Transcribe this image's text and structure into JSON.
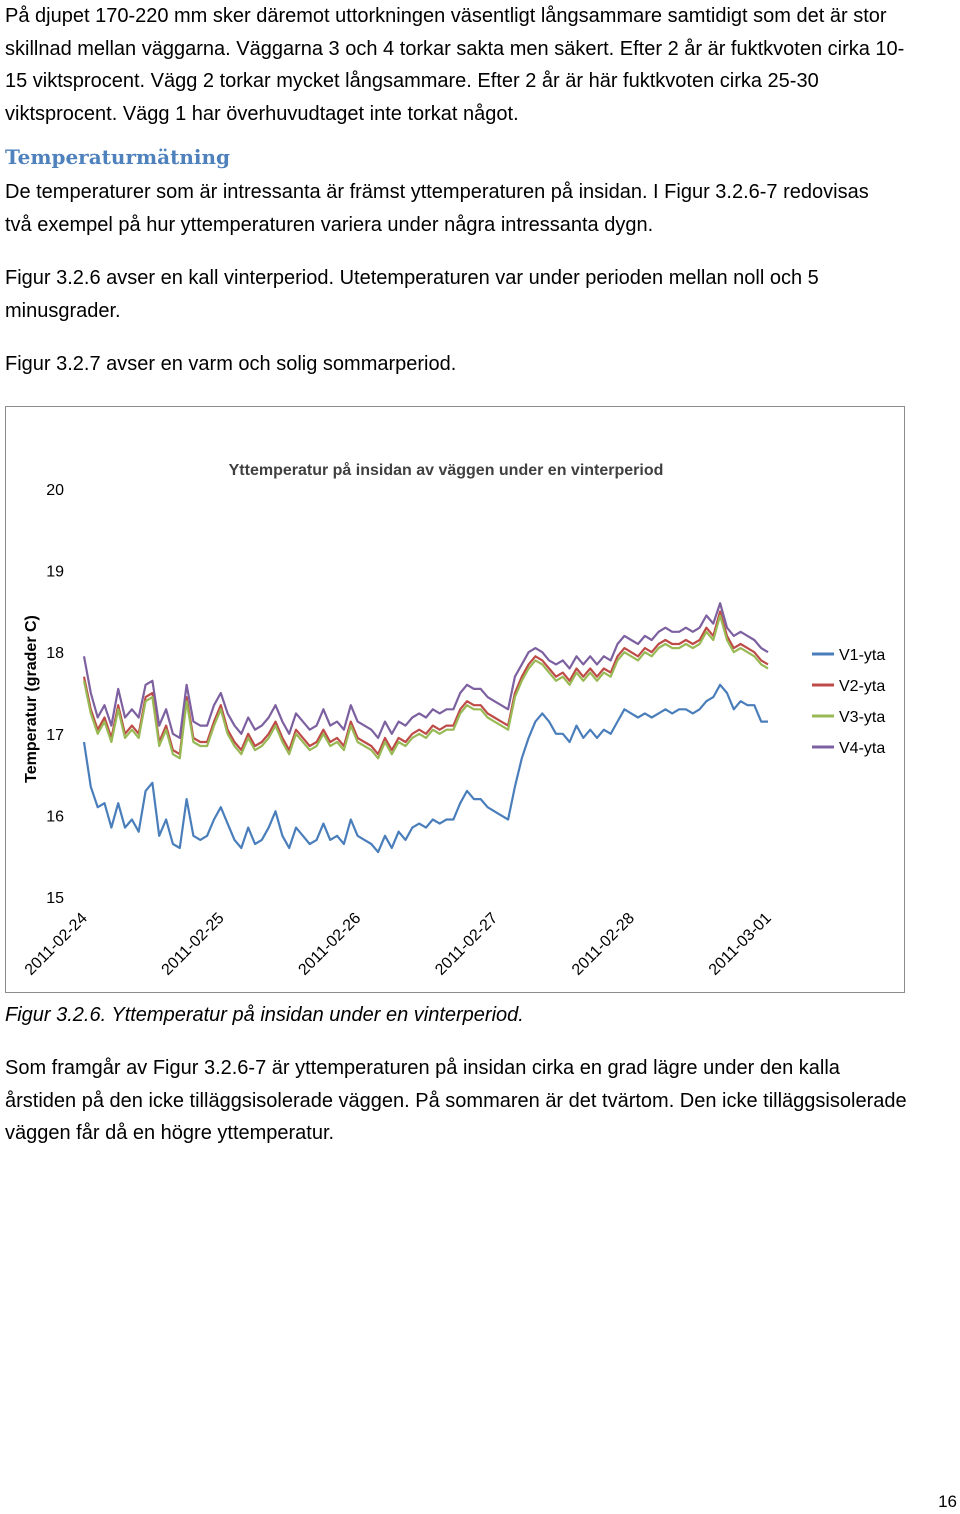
{
  "intro_text": {
    "line1": "På djupet 170-220 mm sker däremot uttorkningen väsentligt långsammare samtidigt som det är stor",
    "line2": "skillnad mellan väggarna. Väggarna 3 och 4 torkar sakta men säkert. Efter 2 år är fuktkvoten cirka 10-",
    "line3": "15 viktsprocent. Vägg 2 torkar mycket långsammare. Efter 2 år är här fuktkvoten cirka 25-30",
    "line4": "viktsprocent. Vägg 1 har överhuvudtaget inte torkat något."
  },
  "section": {
    "heading": "Temperaturmätning",
    "p1_line1": "De temperaturer som är intressanta är främst yttemperaturen på insidan. I Figur 3.2.6-7 redovisas",
    "p1_line2": "två exempel på hur yttemperaturen variera under några intressanta dygn.",
    "p2_line1": "Figur 3.2.6 avser en kall vinterperiod. Utetemperaturen var under perioden mellan noll och 5",
    "p2_line2": "minusgrader.",
    "p3_line1": "Figur 3.2.7 avser en varm och solig sommarperiod."
  },
  "figure": {
    "caption": "Figur 3.2.6. Yttemperatur på insidan under en vinterperiod."
  },
  "closing": {
    "line1": "Som framgår av Figur 3.2.6-7 är yttemperaturen på insidan cirka en grad lägre under den kalla",
    "line2": "årstiden på den icke tilläggsisolerade väggen. På sommaren är det tvärtom. Den icke tilläggsisolerade",
    "line3": "väggen får då en högre yttemperatur."
  },
  "page_number": "16",
  "chart_data": {
    "type": "line",
    "title": "Yttemperatur på insidan av väggen under en vinterperiod",
    "xlabel": "",
    "ylabel": "Temperatur (grader C)",
    "ylim": [
      15,
      20
    ],
    "yticks": [
      15,
      16,
      17,
      18,
      19,
      20
    ],
    "xlim": [
      0,
      5
    ],
    "xticks": [
      "2011-02-24",
      "2011-02-25",
      "2011-02-26",
      "2011-02-27",
      "2011-02-28",
      "2011-03-01"
    ],
    "grid": false,
    "legend_position": "right",
    "x_unit": "days since 2011-02-24 00:00",
    "series": [
      {
        "name": "V1-yta",
        "color": "#4a7ebb",
        "x": [
          0,
          0.05,
          0.1,
          0.15,
          0.2,
          0.25,
          0.3,
          0.35,
          0.4,
          0.45,
          0.5,
          0.55,
          0.6,
          0.65,
          0.7,
          0.75,
          0.8,
          0.85,
          0.9,
          0.95,
          1.0,
          1.05,
          1.1,
          1.15,
          1.2,
          1.25,
          1.3,
          1.35,
          1.4,
          1.45,
          1.5,
          1.55,
          1.6,
          1.65,
          1.7,
          1.75,
          1.8,
          1.85,
          1.9,
          1.95,
          2.0,
          2.05,
          2.1,
          2.15,
          2.2,
          2.25,
          2.3,
          2.35,
          2.4,
          2.45,
          2.5,
          2.55,
          2.6,
          2.65,
          2.7,
          2.75,
          2.8,
          2.85,
          2.9,
          2.95,
          3.0,
          3.05,
          3.1,
          3.15,
          3.2,
          3.25,
          3.3,
          3.35,
          3.4,
          3.45,
          3.5,
          3.55,
          3.6,
          3.65,
          3.7,
          3.75,
          3.8,
          3.85,
          3.9,
          3.95,
          4.0,
          4.05,
          4.1,
          4.15,
          4.2,
          4.25,
          4.3,
          4.35,
          4.4,
          4.45,
          4.5,
          4.55,
          4.6,
          4.65,
          4.7,
          4.75,
          4.8,
          4.85,
          4.9,
          4.95,
          5.0
        ],
        "values": [
          16.9,
          16.35,
          16.1,
          16.15,
          15.85,
          16.15,
          15.85,
          15.95,
          15.8,
          16.3,
          16.4,
          15.75,
          15.95,
          15.65,
          15.6,
          16.2,
          15.75,
          15.7,
          15.75,
          15.95,
          16.1,
          15.9,
          15.7,
          15.6,
          15.85,
          15.65,
          15.7,
          15.85,
          16.05,
          15.75,
          15.6,
          15.85,
          15.75,
          15.65,
          15.7,
          15.9,
          15.7,
          15.75,
          15.65,
          15.95,
          15.75,
          15.7,
          15.65,
          15.55,
          15.75,
          15.6,
          15.8,
          15.7,
          15.85,
          15.9,
          15.85,
          15.95,
          15.9,
          15.95,
          15.95,
          16.15,
          16.3,
          16.2,
          16.2,
          16.1,
          16.05,
          16.0,
          15.95,
          16.35,
          16.7,
          16.95,
          17.15,
          17.25,
          17.15,
          17.0,
          17.0,
          16.9,
          17.1,
          16.95,
          17.05,
          16.95,
          17.05,
          17.0,
          17.15,
          17.3,
          17.25,
          17.2,
          17.25,
          17.2,
          17.25,
          17.3,
          17.25,
          17.3,
          17.3,
          17.25,
          17.3,
          17.4,
          17.45,
          17.6,
          17.5,
          17.3,
          17.4,
          17.35,
          17.35,
          17.15,
          17.15
        ]
      },
      {
        "name": "V2-yta",
        "color": "#be4b48",
        "x": [
          0,
          0.05,
          0.1,
          0.15,
          0.2,
          0.25,
          0.3,
          0.35,
          0.4,
          0.45,
          0.5,
          0.55,
          0.6,
          0.65,
          0.7,
          0.75,
          0.8,
          0.85,
          0.9,
          0.95,
          1.0,
          1.05,
          1.1,
          1.15,
          1.2,
          1.25,
          1.3,
          1.35,
          1.4,
          1.45,
          1.5,
          1.55,
          1.6,
          1.65,
          1.7,
          1.75,
          1.8,
          1.85,
          1.9,
          1.95,
          2.0,
          2.05,
          2.1,
          2.15,
          2.2,
          2.25,
          2.3,
          2.35,
          2.4,
          2.45,
          2.5,
          2.55,
          2.6,
          2.65,
          2.7,
          2.75,
          2.8,
          2.85,
          2.9,
          2.95,
          3.0,
          3.05,
          3.1,
          3.15,
          3.2,
          3.25,
          3.3,
          3.35,
          3.4,
          3.45,
          3.5,
          3.55,
          3.6,
          3.65,
          3.7,
          3.75,
          3.8,
          3.85,
          3.9,
          3.95,
          4.0,
          4.05,
          4.1,
          4.15,
          4.2,
          4.25,
          4.3,
          4.35,
          4.4,
          4.45,
          4.5,
          4.55,
          4.6,
          4.65,
          4.7,
          4.75,
          4.8,
          4.85,
          4.9,
          4.95,
          5.0
        ],
        "values": [
          17.7,
          17.3,
          17.05,
          17.2,
          16.95,
          17.35,
          17.0,
          17.1,
          17.0,
          17.45,
          17.5,
          16.9,
          17.1,
          16.8,
          16.75,
          17.45,
          16.95,
          16.9,
          16.9,
          17.15,
          17.35,
          17.05,
          16.9,
          16.8,
          17.0,
          16.85,
          16.9,
          17.0,
          17.15,
          16.95,
          16.8,
          17.05,
          16.95,
          16.85,
          16.9,
          17.05,
          16.9,
          16.95,
          16.85,
          17.15,
          16.95,
          16.9,
          16.85,
          16.75,
          16.95,
          16.8,
          16.95,
          16.9,
          17.0,
          17.05,
          17.0,
          17.1,
          17.05,
          17.1,
          17.1,
          17.3,
          17.4,
          17.35,
          17.35,
          17.25,
          17.2,
          17.15,
          17.1,
          17.5,
          17.7,
          17.85,
          17.95,
          17.9,
          17.8,
          17.7,
          17.75,
          17.65,
          17.8,
          17.7,
          17.8,
          17.7,
          17.8,
          17.75,
          17.95,
          18.05,
          18.0,
          17.95,
          18.05,
          18.0,
          18.1,
          18.15,
          18.1,
          18.1,
          18.15,
          18.1,
          18.15,
          18.3,
          18.2,
          18.5,
          18.2,
          18.05,
          18.1,
          18.05,
          18.0,
          17.9,
          17.85
        ]
      },
      {
        "name": "V3-yta",
        "color": "#98b954",
        "x": [
          0,
          0.05,
          0.1,
          0.15,
          0.2,
          0.25,
          0.3,
          0.35,
          0.4,
          0.45,
          0.5,
          0.55,
          0.6,
          0.65,
          0.7,
          0.75,
          0.8,
          0.85,
          0.9,
          0.95,
          1.0,
          1.05,
          1.1,
          1.15,
          1.2,
          1.25,
          1.3,
          1.35,
          1.4,
          1.45,
          1.5,
          1.55,
          1.6,
          1.65,
          1.7,
          1.75,
          1.8,
          1.85,
          1.9,
          1.95,
          2.0,
          2.05,
          2.1,
          2.15,
          2.2,
          2.25,
          2.3,
          2.35,
          2.4,
          2.45,
          2.5,
          2.55,
          2.6,
          2.65,
          2.7,
          2.75,
          2.8,
          2.85,
          2.9,
          2.95,
          3.0,
          3.05,
          3.1,
          3.15,
          3.2,
          3.25,
          3.3,
          3.35,
          3.4,
          3.45,
          3.5,
          3.55,
          3.6,
          3.65,
          3.7,
          3.75,
          3.8,
          3.85,
          3.9,
          3.95,
          4.0,
          4.05,
          4.1,
          4.15,
          4.2,
          4.25,
          4.3,
          4.35,
          4.4,
          4.45,
          4.5,
          4.55,
          4.6,
          4.65,
          4.7,
          4.75,
          4.8,
          4.85,
          4.9,
          4.95,
          5.0
        ],
        "values": [
          17.65,
          17.25,
          17.0,
          17.15,
          16.9,
          17.3,
          16.95,
          17.05,
          16.95,
          17.4,
          17.45,
          16.85,
          17.05,
          16.75,
          16.7,
          17.4,
          16.9,
          16.85,
          16.85,
          17.1,
          17.3,
          17.0,
          16.85,
          16.75,
          16.95,
          16.8,
          16.85,
          16.95,
          17.1,
          16.9,
          16.75,
          17.0,
          16.9,
          16.8,
          16.85,
          17.0,
          16.85,
          16.9,
          16.8,
          17.1,
          16.9,
          16.85,
          16.8,
          16.7,
          16.9,
          16.75,
          16.9,
          16.85,
          16.95,
          17.0,
          16.95,
          17.05,
          17.0,
          17.05,
          17.05,
          17.25,
          17.35,
          17.3,
          17.3,
          17.2,
          17.15,
          17.1,
          17.05,
          17.45,
          17.65,
          17.8,
          17.9,
          17.85,
          17.75,
          17.65,
          17.7,
          17.6,
          17.75,
          17.65,
          17.75,
          17.65,
          17.75,
          17.7,
          17.9,
          18.0,
          17.95,
          17.9,
          18.0,
          17.95,
          18.05,
          18.1,
          18.05,
          18.05,
          18.1,
          18.05,
          18.1,
          18.25,
          18.15,
          18.45,
          18.15,
          18.0,
          18.05,
          18.0,
          17.95,
          17.85,
          17.8
        ]
      },
      {
        "name": "V4-yta",
        "color": "#7d60a0",
        "x": [
          0,
          0.05,
          0.1,
          0.15,
          0.2,
          0.25,
          0.3,
          0.35,
          0.4,
          0.45,
          0.5,
          0.55,
          0.6,
          0.65,
          0.7,
          0.75,
          0.8,
          0.85,
          0.9,
          0.95,
          1.0,
          1.05,
          1.1,
          1.15,
          1.2,
          1.25,
          1.3,
          1.35,
          1.4,
          1.45,
          1.5,
          1.55,
          1.6,
          1.65,
          1.7,
          1.75,
          1.8,
          1.85,
          1.9,
          1.95,
          2.0,
          2.05,
          2.1,
          2.15,
          2.2,
          2.25,
          2.3,
          2.35,
          2.4,
          2.45,
          2.5,
          2.55,
          2.6,
          2.65,
          2.7,
          2.75,
          2.8,
          2.85,
          2.9,
          2.95,
          3.0,
          3.05,
          3.1,
          3.15,
          3.2,
          3.25,
          3.3,
          3.35,
          3.4,
          3.45,
          3.5,
          3.55,
          3.6,
          3.65,
          3.7,
          3.75,
          3.8,
          3.85,
          3.9,
          3.95,
          4.0,
          4.05,
          4.1,
          4.15,
          4.2,
          4.25,
          4.3,
          4.35,
          4.4,
          4.45,
          4.5,
          4.55,
          4.6,
          4.65,
          4.7,
          4.75,
          4.8,
          4.85,
          4.9,
          4.95,
          5.0
        ],
        "values": [
          17.95,
          17.5,
          17.2,
          17.35,
          17.1,
          17.55,
          17.2,
          17.3,
          17.2,
          17.6,
          17.65,
          17.1,
          17.3,
          17.0,
          16.95,
          17.6,
          17.15,
          17.1,
          17.1,
          17.35,
          17.5,
          17.25,
          17.1,
          17.0,
          17.2,
          17.05,
          17.1,
          17.2,
          17.35,
          17.15,
          17.0,
          17.25,
          17.15,
          17.05,
          17.1,
          17.3,
          17.1,
          17.15,
          17.05,
          17.35,
          17.15,
          17.1,
          17.05,
          16.95,
          17.15,
          17.0,
          17.15,
          17.1,
          17.2,
          17.25,
          17.2,
          17.3,
          17.25,
          17.3,
          17.3,
          17.5,
          17.6,
          17.55,
          17.55,
          17.45,
          17.4,
          17.35,
          17.3,
          17.7,
          17.85,
          18.0,
          18.05,
          18.0,
          17.9,
          17.85,
          17.9,
          17.8,
          17.95,
          17.85,
          17.95,
          17.85,
          17.95,
          17.9,
          18.1,
          18.2,
          18.15,
          18.1,
          18.2,
          18.15,
          18.25,
          18.3,
          18.25,
          18.25,
          18.3,
          18.25,
          18.3,
          18.45,
          18.35,
          18.6,
          18.3,
          18.2,
          18.25,
          18.2,
          18.15,
          18.05,
          18.0
        ]
      }
    ]
  }
}
